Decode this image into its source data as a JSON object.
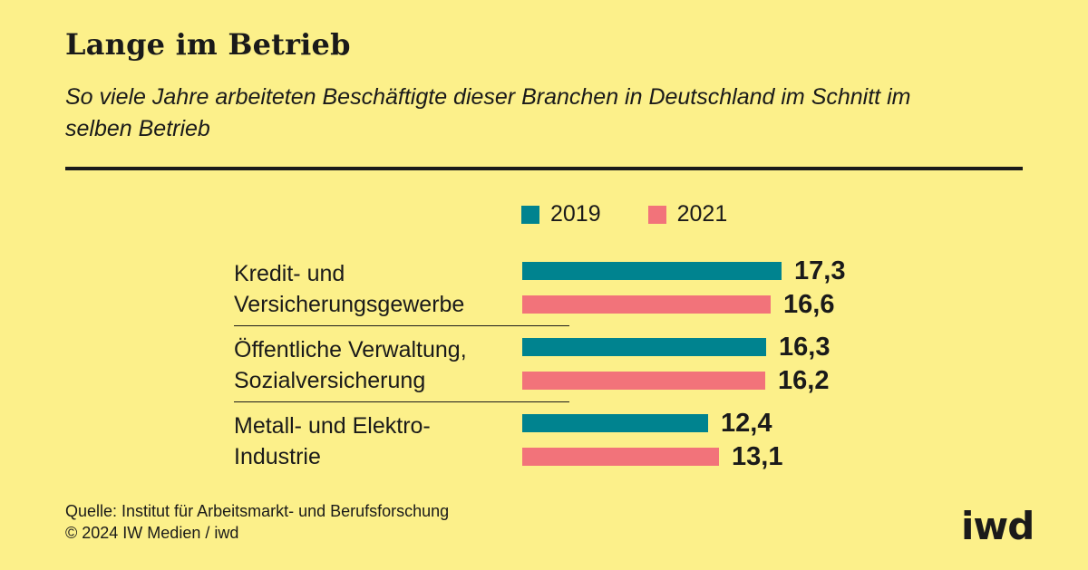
{
  "header": {
    "title": "Lange im Betrieb",
    "subtitle": "So viele Jahre arbeiteten Beschäftigte dieser Branchen in Deutschland im Schnitt im selben Betrieb"
  },
  "colors": {
    "series_2019": "#00838f",
    "series_2021": "#f2737a",
    "background": "#fcf08a"
  },
  "chart_data": {
    "type": "bar",
    "orientation": "horizontal",
    "categories": [
      [
        "Kredit- und",
        "Versicherungsgewerbe"
      ],
      [
        "Öffentliche Verwaltung,",
        "Sozialversicherung"
      ],
      [
        "Metall- und Elektro-",
        "Industrie"
      ]
    ],
    "series": [
      {
        "name": "2019",
        "values": [
          17.3,
          16.3,
          12.4
        ],
        "labels": [
          "17,3",
          "16,3",
          "12,4"
        ]
      },
      {
        "name": "2021",
        "values": [
          16.6,
          16.2,
          13.1
        ],
        "labels": [
          "16,6",
          "16,2",
          "13,1"
        ]
      }
    ],
    "legend_position": "top",
    "xlim": [
      0,
      17.3
    ]
  },
  "footer": {
    "source": "Quelle: Institut für Arbeitsmarkt- und Berufsforschung",
    "copyright": "© 2024 IW Medien / iwd"
  },
  "logo": "iwd"
}
